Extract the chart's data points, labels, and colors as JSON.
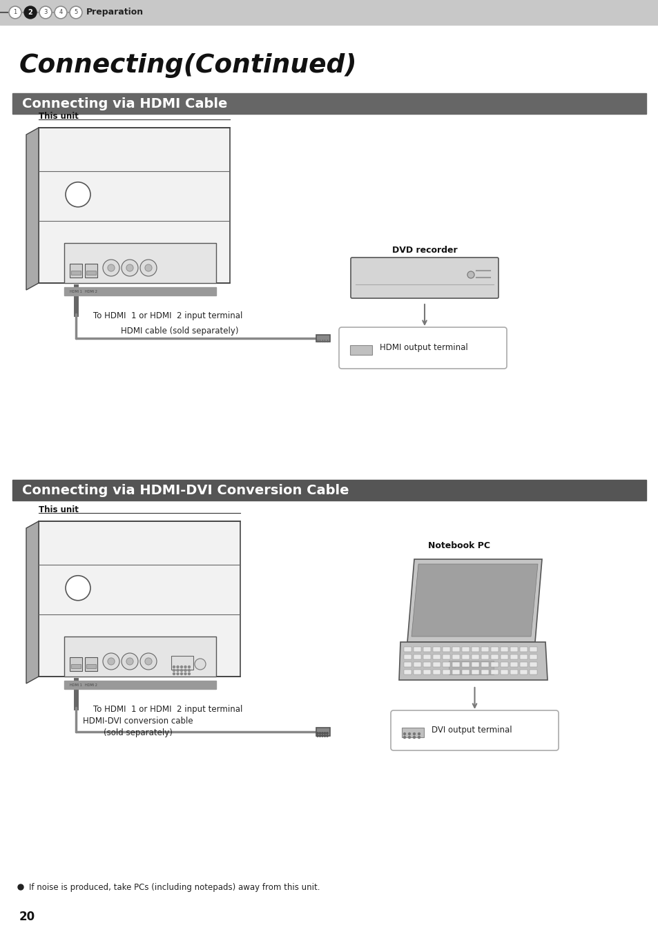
{
  "page_bg": "#ffffff",
  "top_bar_color": "#c8c8c8",
  "step_label": "Preparation",
  "main_title": "Connecting(Continued)",
  "section1_title": "Connecting via HDMI Cable",
  "section1_bar_color": "#666666",
  "section2_title": "Connecting via HDMI-DVI Conversion Cable",
  "section2_bar_color": "#555555",
  "title_color": "#ffffff",
  "this_unit_label": "This unit",
  "hdmi_label1": "To HDMI  1 or HDMI  2 input terminal",
  "cable_label1": "HDMI cable (sold separately)",
  "hdmi_output_label": "HDMI output terminal",
  "dvd_label": "DVD recorder",
  "notebook_label": "Notebook PC",
  "hdmi_label2": "To HDMI  1 or HDMI  2 input terminal",
  "cable_label2_line1": "HDMI-DVI conversion cable",
  "cable_label2_line2": "(sold separately)",
  "dvi_output_label": "DVI output terminal",
  "note_bullet": "●",
  "note_text": "If noise is produced, take PCs (including notepads) away from this unit.",
  "page_num": "20"
}
